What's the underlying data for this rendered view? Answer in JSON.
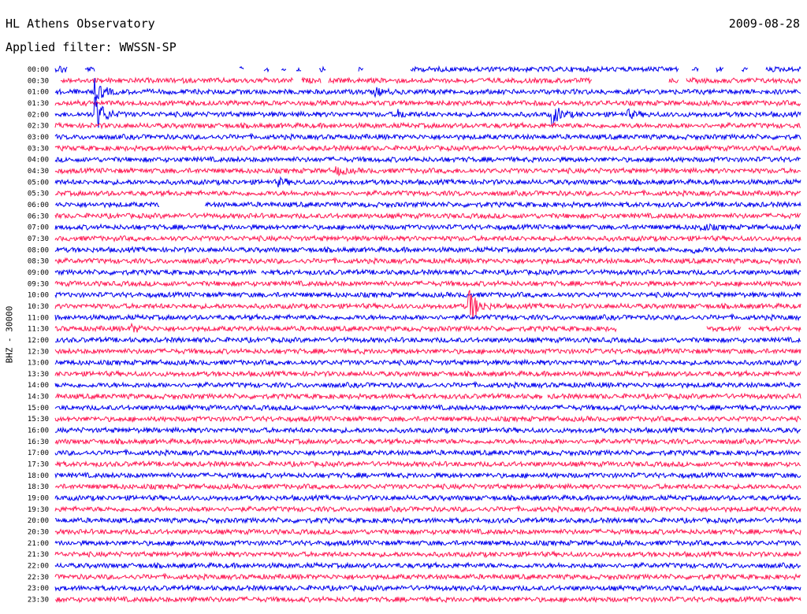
{
  "header": {
    "station": "HL Athens Observatory",
    "date": "2009-08-28",
    "filter_label": "Applied filter: WWSSN-SP"
  },
  "chart_data": {
    "type": "line",
    "title": "HL Athens Observatory",
    "subtitle": "Applied filter: WWSSN-SP",
    "date": "2009-08-28",
    "ylabel": "BHZ - 30000",
    "xlabel": "",
    "row_labels": [
      "00:00",
      "00:30",
      "01:00",
      "01:30",
      "02:00",
      "02:30",
      "03:00",
      "03:30",
      "04:00",
      "04:30",
      "05:00",
      "05:30",
      "06:00",
      "06:30",
      "07:00",
      "07:30",
      "08:00",
      "08:30",
      "09:00",
      "09:30",
      "10:00",
      "10:30",
      "11:00",
      "11:30",
      "12:00",
      "12:30",
      "13:00",
      "13:30",
      "14:00",
      "14:30",
      "15:00",
      "15:30",
      "16:00",
      "16:30",
      "17:00",
      "17:30",
      "18:00",
      "18:30",
      "19:00",
      "19:30",
      "20:00",
      "20:30",
      "21:00",
      "21:30",
      "22:00",
      "22:30",
      "23:00",
      "23:30"
    ],
    "series_colors": [
      "#0000ee",
      "#ff1a55"
    ],
    "minutes_per_row": 30,
    "grid": false,
    "gaps": [
      {
        "row": 0,
        "from_min": 0.5,
        "to_min": 1.2
      },
      {
        "row": 0,
        "from_min": 1.6,
        "to_min": 7.4
      },
      {
        "row": 0,
        "from_min": 7.6,
        "to_min": 8.4
      },
      {
        "row": 0,
        "from_min": 8.6,
        "to_min": 9.1
      },
      {
        "row": 0,
        "from_min": 9.3,
        "to_min": 9.7
      },
      {
        "row": 0,
        "from_min": 9.9,
        "to_min": 10.6
      },
      {
        "row": 0,
        "from_min": 10.9,
        "to_min": 12.2
      },
      {
        "row": 0,
        "from_min": 12.4,
        "to_min": 14.3
      },
      {
        "row": 0,
        "from_min": 25.1,
        "to_min": 25.6
      },
      {
        "row": 0,
        "from_min": 25.9,
        "to_min": 26.6
      },
      {
        "row": 0,
        "from_min": 26.9,
        "to_min": 27.6
      },
      {
        "row": 0,
        "from_min": 27.9,
        "to_min": 28.6
      },
      {
        "row": 1,
        "from_min": 0.0,
        "to_min": 0.2
      },
      {
        "row": 1,
        "from_min": 9.6,
        "to_min": 9.9
      },
      {
        "row": 1,
        "from_min": 10.7,
        "to_min": 11.0
      },
      {
        "row": 1,
        "from_min": 21.6,
        "to_min": 24.7
      },
      {
        "row": 1,
        "from_min": 25.1,
        "to_min": 25.4
      },
      {
        "row": 12,
        "from_min": 4.2,
        "to_min": 6.0
      },
      {
        "row": 18,
        "from_min": 8.1,
        "to_min": 8.3
      },
      {
        "row": 23,
        "from_min": 22.6,
        "to_min": 26.2
      },
      {
        "row": 23,
        "from_min": 27.6,
        "to_min": 27.9
      },
      {
        "row": 29,
        "from_min": 19.6,
        "to_min": 19.8
      }
    ],
    "events": [
      {
        "row": 0,
        "start_min": 13.6,
        "amp": 3.0
      },
      {
        "row": 0,
        "start_min": 0.2,
        "amp": 3.0
      },
      {
        "row": 2,
        "start_min": 1.6,
        "amp": 14.0
      },
      {
        "row": 2,
        "start_min": 12.9,
        "amp": 4.0
      },
      {
        "row": 4,
        "start_min": 1.6,
        "amp": 26.0
      },
      {
        "row": 4,
        "start_min": 20.0,
        "amp": 14.0
      },
      {
        "row": 4,
        "start_min": 23.0,
        "amp": 5.0
      },
      {
        "row": 4,
        "start_min": 13.8,
        "amp": 4.0
      },
      {
        "row": 9,
        "start_min": 11.3,
        "amp": 5.0
      },
      {
        "row": 10,
        "start_min": 9.0,
        "amp": 4.0
      },
      {
        "row": 14,
        "start_min": 26.0,
        "amp": 4.0
      },
      {
        "row": 16,
        "start_min": 25.6,
        "amp": 4.0
      },
      {
        "row": 21,
        "start_min": 16.6,
        "amp": 30.0
      },
      {
        "row": 23,
        "start_min": 3.1,
        "amp": 4.0
      },
      {
        "row": 47,
        "start_min": 5.5,
        "amp": 3.0
      }
    ]
  }
}
